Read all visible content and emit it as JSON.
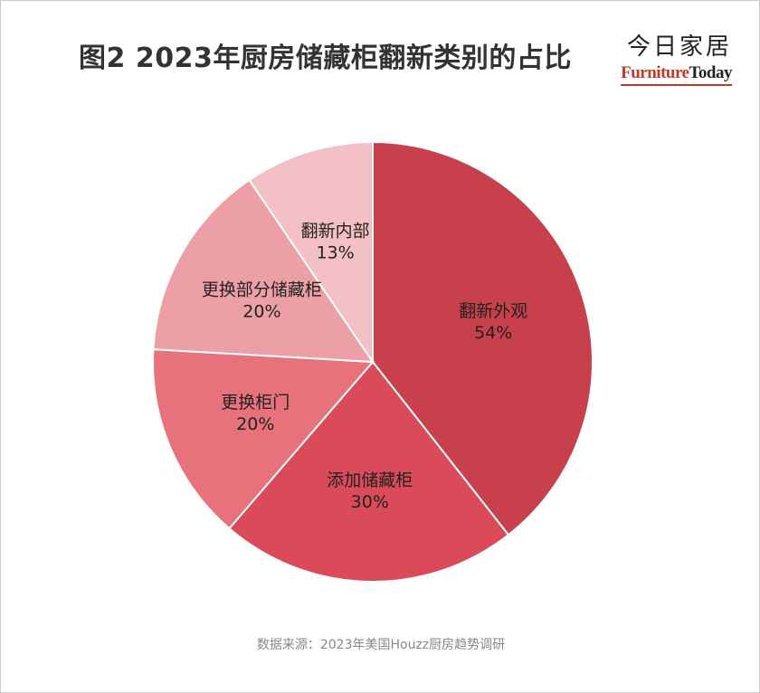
{
  "title": "图2 2023年厨房储藏柜翻新类别的占比",
  "brand": {
    "cn": "今日家居",
    "en_part1": "Furniture",
    "en_part2": "Today"
  },
  "source": "数据来源：2023年美国Houzz厨房趋势调研",
  "chart_data": {
    "type": "pie",
    "slices": [
      {
        "label": "翻新外观",
        "value": 54,
        "display": "54%",
        "color": "#c8404c"
      },
      {
        "label": "添加储藏柜",
        "value": 30,
        "display": "30%",
        "color": "#db4a58"
      },
      {
        "label": "更换柜门",
        "value": 20,
        "display": "20%",
        "color": "#e8727c"
      },
      {
        "label": "更换部分储藏柜",
        "value": 20,
        "display": "20%",
        "color": "#eca0a6"
      },
      {
        "label": "翻新内部",
        "value": 13,
        "display": "13%",
        "color": "#f3c0c5"
      }
    ]
  }
}
